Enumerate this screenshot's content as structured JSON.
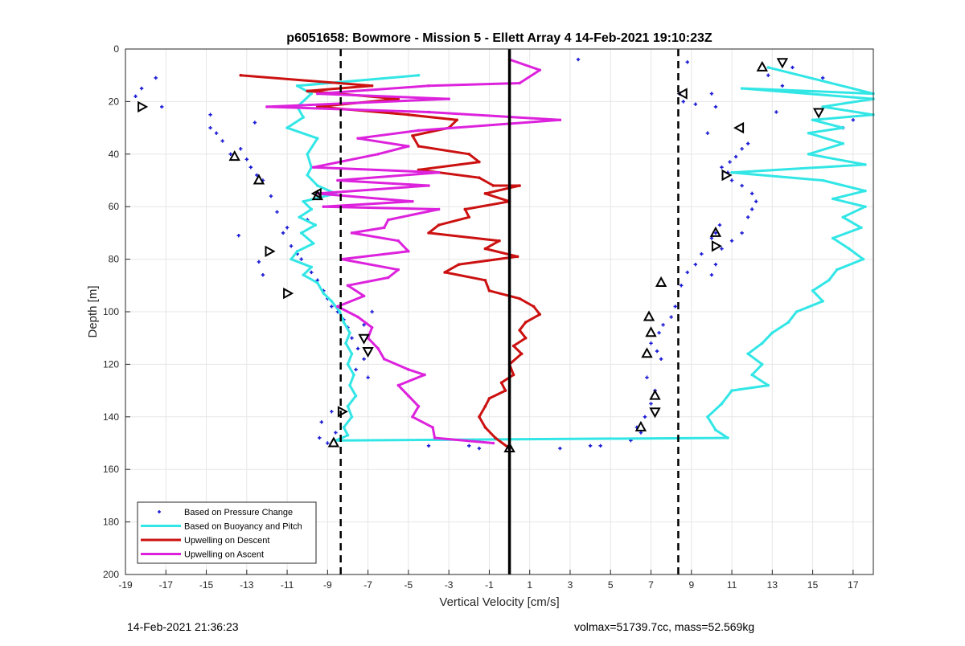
{
  "footer": {
    "timestamp": "14-Feb-2021 21:36:23",
    "volume_mass": "volmax=51739.7cc, mass=52.569kg"
  },
  "chart_data": {
    "type": "line",
    "title": "p6051658: Bowmore - Mission 5 - Ellett Array 4 14-Feb-2021 19:10:23Z",
    "xlabel": "Vertical Velocity [cm/s]",
    "ylabel": "Depth [m]",
    "xlim": [
      -19,
      18
    ],
    "ylim": [
      0,
      200
    ],
    "y_reversed": true,
    "grid": true,
    "x_ticks": [
      -19,
      -17,
      -15,
      -13,
      -11,
      -9,
      -7,
      -5,
      -3,
      -1,
      1,
      3,
      5,
      7,
      9,
      11,
      13,
      15,
      17
    ],
    "y_ticks": [
      0,
      20,
      40,
      60,
      80,
      100,
      120,
      140,
      160,
      180,
      200
    ],
    "legend_position": "bottom-left",
    "reference_lines": [
      {
        "x": -8.35,
        "style": "dashed",
        "color": "#000000"
      },
      {
        "x": 0,
        "style": "solid",
        "color": "#000000"
      },
      {
        "x": 8.35,
        "style": "dashed",
        "color": "#000000"
      }
    ],
    "series": [
      {
        "name": "Based on Pressure Change",
        "kind": "points",
        "color": "#1a1ad6",
        "points": [
          [
            -18.5,
            18
          ],
          [
            -18.2,
            15
          ],
          [
            -17.5,
            11
          ],
          [
            -17.2,
            22
          ],
          [
            -14.8,
            25
          ],
          [
            -14.8,
            30
          ],
          [
            -14.5,
            32
          ],
          [
            -14.2,
            35
          ],
          [
            -13.8,
            40
          ],
          [
            -13.3,
            38
          ],
          [
            -13,
            42
          ],
          [
            -12.8,
            45
          ],
          [
            -12.5,
            48
          ],
          [
            -12.2,
            50
          ],
          [
            -12.6,
            28
          ],
          [
            -11.8,
            56
          ],
          [
            -11.5,
            62
          ],
          [
            -11.2,
            70
          ],
          [
            -11,
            68
          ],
          [
            -10.8,
            75
          ],
          [
            -10.5,
            78
          ],
          [
            -10.3,
            80
          ],
          [
            -10,
            65
          ],
          [
            -9.8,
            85
          ],
          [
            -9.5,
            88
          ],
          [
            -9.2,
            92
          ],
          [
            -9,
            95
          ],
          [
            -8.8,
            98
          ],
          [
            -8.5,
            100
          ],
          [
            -8.2,
            103
          ],
          [
            -8,
            106
          ],
          [
            -7.8,
            110
          ],
          [
            -7.5,
            114
          ],
          [
            -7.2,
            118
          ],
          [
            -7,
            125
          ],
          [
            -6.8,
            100
          ],
          [
            -7.2,
            105
          ],
          [
            -7.6,
            122
          ],
          [
            -9,
            150
          ],
          [
            -9.3,
            142
          ],
          [
            -8.8,
            138
          ],
          [
            -8.6,
            146
          ],
          [
            -9.4,
            148
          ],
          [
            -4,
            151
          ],
          [
            -2,
            151
          ],
          [
            -1.5,
            152
          ],
          [
            0,
            152
          ],
          [
            2.5,
            152
          ],
          [
            4,
            151
          ],
          [
            4.5,
            151
          ],
          [
            6,
            149
          ],
          [
            6.3,
            144
          ],
          [
            6.5,
            146
          ],
          [
            6.7,
            140
          ],
          [
            7,
            135
          ],
          [
            7.2,
            130
          ],
          [
            6.8,
            125
          ],
          [
            7.5,
            118
          ],
          [
            7.3,
            115
          ],
          [
            7,
            112
          ],
          [
            7.4,
            108
          ],
          [
            7.6,
            105
          ],
          [
            8,
            102
          ],
          [
            8.2,
            98
          ],
          [
            8.5,
            90
          ],
          [
            8.8,
            85
          ],
          [
            9.2,
            82
          ],
          [
            9.5,
            78
          ],
          [
            10,
            72
          ],
          [
            10.2,
            70
          ],
          [
            10.4,
            67
          ],
          [
            10,
            86
          ],
          [
            10.2,
            82
          ],
          [
            10.5,
            76
          ],
          [
            11,
            73
          ],
          [
            11.5,
            70
          ],
          [
            11.8,
            64
          ],
          [
            12,
            61
          ],
          [
            12.2,
            58
          ],
          [
            12,
            55
          ],
          [
            11.5,
            52
          ],
          [
            11,
            50
          ],
          [
            10.8,
            47
          ],
          [
            10.5,
            45
          ],
          [
            10.9,
            43
          ],
          [
            11.2,
            41
          ],
          [
            11.5,
            38
          ],
          [
            11.8,
            36
          ],
          [
            9.8,
            32
          ],
          [
            10.2,
            22
          ],
          [
            10,
            17
          ],
          [
            9.2,
            21
          ],
          [
            8.6,
            20
          ],
          [
            8.4,
            17
          ],
          [
            8.8,
            5
          ],
          [
            3.4,
            4
          ],
          [
            12.8,
            10
          ],
          [
            13.2,
            24
          ],
          [
            13.5,
            14
          ],
          [
            14,
            7
          ],
          [
            15.5,
            11
          ],
          [
            16.5,
            30
          ],
          [
            17,
            27
          ],
          [
            -13.4,
            71
          ],
          [
            -12.2,
            86
          ],
          [
            -12.4,
            81
          ]
        ]
      },
      {
        "name": "Based on Buoyancy and Pitch",
        "kind": "line",
        "color": "#33e6e6",
        "points": [
          [
            -4.5,
            10
          ],
          [
            -10.5,
            14
          ],
          [
            -9.8,
            17
          ],
          [
            -10.5,
            22
          ],
          [
            -10.2,
            26
          ],
          [
            -11,
            30
          ],
          [
            -9.5,
            34
          ],
          [
            -10,
            40
          ],
          [
            -9.8,
            45
          ],
          [
            -10,
            48
          ],
          [
            -9.5,
            52
          ],
          [
            -8.6,
            55
          ],
          [
            -10.2,
            58
          ],
          [
            -9.8,
            61
          ],
          [
            -10.4,
            64
          ],
          [
            -9.6,
            67
          ],
          [
            -10.3,
            70
          ],
          [
            -9.7,
            74
          ],
          [
            -10.5,
            77
          ],
          [
            -10.8,
            80
          ],
          [
            -9.8,
            83
          ],
          [
            -10.2,
            86
          ],
          [
            -9.5,
            89
          ],
          [
            -9.2,
            93
          ],
          [
            -8.8,
            96
          ],
          [
            -8.4,
            100
          ],
          [
            -8.2,
            104
          ],
          [
            -7.9,
            108
          ],
          [
            -8.1,
            112
          ],
          [
            -7.8,
            116
          ],
          [
            -8,
            120
          ],
          [
            -7.7,
            124
          ],
          [
            -7.9,
            128
          ],
          [
            -7.6,
            132
          ],
          [
            -8,
            136
          ],
          [
            -7.8,
            140
          ],
          [
            -8.2,
            144
          ],
          [
            -8,
            147
          ],
          [
            -8.6,
            149
          ],
          [
            10.8,
            148
          ],
          [
            10.2,
            145
          ],
          [
            9.8,
            140
          ],
          [
            10.5,
            135
          ],
          [
            11,
            130
          ],
          [
            12.8,
            128
          ],
          [
            12,
            124
          ],
          [
            12.5,
            120
          ],
          [
            11.8,
            116
          ],
          [
            12.5,
            112
          ],
          [
            13,
            108
          ],
          [
            13.8,
            104
          ],
          [
            14.2,
            100
          ],
          [
            15.5,
            96
          ],
          [
            15,
            92
          ],
          [
            15.8,
            88
          ],
          [
            16.2,
            84
          ],
          [
            17.5,
            80
          ],
          [
            16.8,
            76
          ],
          [
            16,
            72
          ],
          [
            17.4,
            68
          ],
          [
            16.5,
            64
          ],
          [
            17.6,
            60
          ],
          [
            16,
            57
          ],
          [
            17.6,
            54
          ],
          [
            15.5,
            50
          ],
          [
            11,
            47
          ],
          [
            17.6,
            44
          ],
          [
            14.8,
            40
          ],
          [
            16.5,
            36
          ],
          [
            14.8,
            32
          ],
          [
            16.5,
            30
          ],
          [
            15,
            27
          ],
          [
            18,
            25
          ],
          [
            15.5,
            22
          ],
          [
            18,
            19
          ],
          [
            11.5,
            15
          ],
          [
            18,
            17
          ],
          [
            12.8,
            7
          ]
        ]
      },
      {
        "name": "Upwelling on Descent",
        "kind": "line",
        "color": "#cc1111",
        "points": [
          [
            -13.3,
            10
          ],
          [
            -6.8,
            14
          ],
          [
            -10,
            16
          ],
          [
            -5.5,
            19
          ],
          [
            -9.5,
            22
          ],
          [
            -5,
            25
          ],
          [
            -2.6,
            27
          ],
          [
            -3,
            30
          ],
          [
            -4.8,
            33
          ],
          [
            -4.5,
            37
          ],
          [
            -2,
            40
          ],
          [
            -1.5,
            43
          ],
          [
            -4.5,
            46
          ],
          [
            -1.5,
            49
          ],
          [
            -0.8,
            52
          ],
          [
            0.5,
            52
          ],
          [
            -1.2,
            55
          ],
          [
            0,
            58
          ],
          [
            -2.2,
            61
          ],
          [
            -2,
            64
          ],
          [
            -3.5,
            67
          ],
          [
            -4,
            70
          ],
          [
            -0.5,
            73
          ],
          [
            -1.2,
            76
          ],
          [
            0.4,
            79
          ],
          [
            -2.5,
            82
          ],
          [
            -3.2,
            85
          ],
          [
            -1.2,
            88
          ],
          [
            -1,
            92
          ],
          [
            0.5,
            95
          ],
          [
            1.2,
            98
          ],
          [
            1.5,
            101
          ],
          [
            0.8,
            104
          ],
          [
            0.5,
            107
          ],
          [
            0.8,
            110
          ],
          [
            0.2,
            113
          ],
          [
            0.6,
            116
          ],
          [
            0,
            120
          ],
          [
            0.2,
            124
          ],
          [
            -0.4,
            127
          ],
          [
            -0.2,
            130
          ],
          [
            -1,
            133
          ],
          [
            -1.2,
            136
          ],
          [
            -1.5,
            140
          ],
          [
            -1.2,
            144
          ],
          [
            -0.7,
            148
          ],
          [
            0,
            152
          ]
        ]
      },
      {
        "name": "Upwelling on Ascent",
        "kind": "line",
        "color": "#dd22dd",
        "points": [
          [
            0,
            4
          ],
          [
            1.5,
            8
          ],
          [
            0.5,
            13
          ],
          [
            -4,
            14
          ],
          [
            -9.5,
            17
          ],
          [
            -3,
            19
          ],
          [
            -12,
            22
          ],
          [
            -4,
            24
          ],
          [
            2.5,
            27
          ],
          [
            -4.5,
            31
          ],
          [
            -7.5,
            34
          ],
          [
            -5,
            37
          ],
          [
            -6.5,
            40
          ],
          [
            -9.7,
            45
          ],
          [
            -3.5,
            47
          ],
          [
            -8.5,
            50
          ],
          [
            -4,
            52
          ],
          [
            -9.5,
            55
          ],
          [
            -4.8,
            58
          ],
          [
            -9.2,
            60
          ],
          [
            -3.5,
            61
          ],
          [
            -6,
            65
          ],
          [
            -6.2,
            68
          ],
          [
            -7.8,
            70
          ],
          [
            -5.5,
            73
          ],
          [
            -5,
            77
          ],
          [
            -8.3,
            80
          ],
          [
            -5.5,
            84
          ],
          [
            -6,
            87
          ],
          [
            -8,
            90
          ],
          [
            -7.2,
            94
          ],
          [
            -8.5,
            98
          ],
          [
            -7.5,
            102
          ],
          [
            -6.8,
            106
          ],
          [
            -7,
            110
          ],
          [
            -6.5,
            114
          ],
          [
            -6.2,
            118
          ],
          [
            -5,
            122
          ],
          [
            -4.2,
            124
          ],
          [
            -5.5,
            128
          ],
          [
            -5,
            132
          ],
          [
            -4.5,
            136
          ],
          [
            -4.8,
            140
          ],
          [
            -3.8,
            144
          ],
          [
            -3.7,
            148
          ],
          [
            -0.8,
            150
          ]
        ]
      }
    ],
    "markers": [
      {
        "shape": "triangle-up",
        "points": [
          [
            12.5,
            7
          ],
          [
            -13.6,
            41
          ],
          [
            -12.4,
            50
          ],
          [
            10.2,
            70
          ],
          [
            7.5,
            89
          ],
          [
            -9.5,
            56
          ],
          [
            6.9,
            102
          ],
          [
            7,
            108
          ],
          [
            6.8,
            116
          ],
          [
            7.2,
            132
          ],
          [
            6.5,
            144
          ],
          [
            -8.7,
            150
          ],
          [
            0,
            152
          ]
        ]
      },
      {
        "shape": "triangle-down",
        "points": [
          [
            13.5,
            5
          ],
          [
            15.3,
            24
          ],
          [
            -7.2,
            110
          ],
          [
            7.2,
            138
          ],
          [
            -7,
            115
          ]
        ]
      },
      {
        "shape": "triangle-right",
        "points": [
          [
            -18.2,
            22
          ],
          [
            -11.9,
            77
          ],
          [
            -11,
            93
          ],
          [
            10.7,
            48
          ],
          [
            10.2,
            75
          ],
          [
            -8.3,
            138
          ]
        ]
      },
      {
        "shape": "triangle-left",
        "points": [
          [
            8.6,
            17
          ],
          [
            11.4,
            30
          ],
          [
            -9.5,
            55
          ]
        ]
      }
    ]
  }
}
